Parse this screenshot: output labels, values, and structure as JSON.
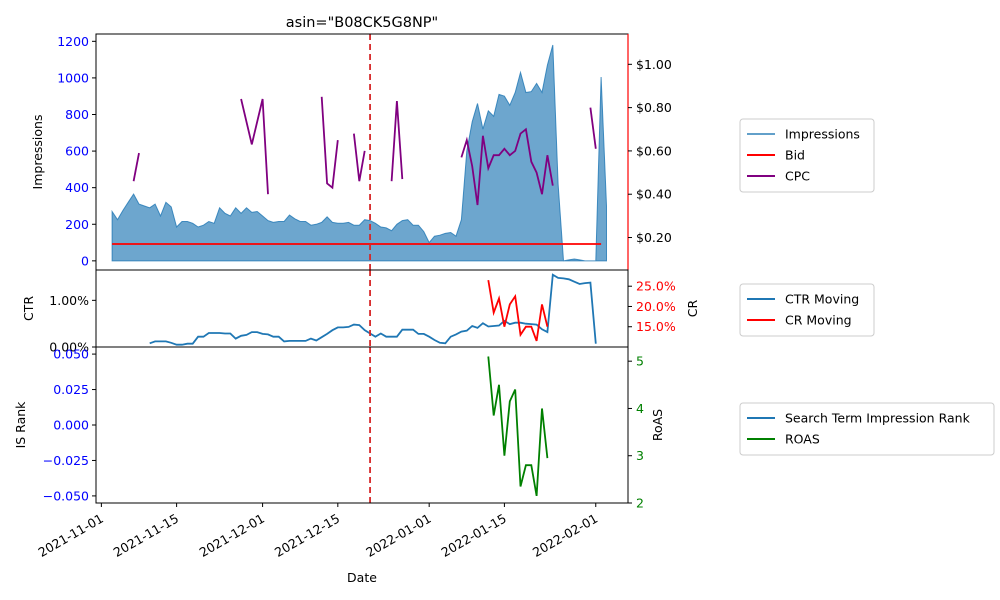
{
  "chart_data": {
    "type": "line",
    "title": "asin=\"B08CK5G8NP\"",
    "xlabel": "Date",
    "x_range": [
      "2021-10-31",
      "2022-02-07"
    ],
    "x_ticks": [
      "2021-11-01",
      "2021-11-15",
      "2021-12-01",
      "2021-12-15",
      "2022-01-01",
      "2022-01-15",
      "2022-02-01"
    ],
    "event_line": {
      "date": "2021-12-21",
      "color": "#d62728",
      "style": "dashed"
    },
    "panels": [
      {
        "id": "impressions",
        "left_axis": {
          "label": "Impressions",
          "range": [
            -50,
            1240
          ],
          "ticks": [
            0,
            200,
            400,
            600,
            800,
            1000,
            1200
          ],
          "tick_labels": [
            "0",
            "200",
            "400",
            "600",
            "800",
            "1000",
            "1200"
          ],
          "color": "#0000ff"
        },
        "right_axis": {
          "label": "",
          "range": [
            0.05,
            1.14
          ],
          "ticks": [
            0.2,
            0.4,
            0.6,
            0.8,
            1.0
          ],
          "tick_labels": [
            "$0.20",
            "$0.40",
            "$0.60",
            "$0.80",
            "$1.00"
          ],
          "color": "#000000"
        },
        "legend": {
          "position": "right",
          "entries": [
            "Impressions",
            "Bid",
            "CPC"
          ]
        },
        "series": [
          {
            "name": "Impressions",
            "axis": "left",
            "kind": "area",
            "color": "#1f77b4",
            "start": "2021-11-03",
            "values": [
              270,
              225,
              275,
              320,
              365,
              310,
              300,
              290,
              310,
              245,
              320,
              295,
              185,
              215,
              215,
              205,
              185,
              195,
              215,
              205,
              290,
              260,
              245,
              290,
              260,
              290,
              265,
              270,
              245,
              220,
              210,
              215,
              215,
              250,
              230,
              215,
              215,
              195,
              200,
              210,
              240,
              210,
              205,
              205,
              210,
              195,
              195,
              225,
              220,
              205,
              185,
              180,
              165,
              200,
              220,
              225,
              195,
              195,
              160,
              100,
              135,
              140,
              150,
              155,
              135,
              225,
              600,
              760,
              860,
              720,
              820,
              790,
              910,
              900,
              850,
              920,
              1030,
              920,
              925,
              970,
              920,
              1070,
              1180,
              420,
              0,
              5,
              10,
              5,
              0,
              0,
              0,
              1005,
              300
            ]
          },
          {
            "name": "Bid",
            "axis": "right",
            "kind": "line",
            "color": "#ff0000",
            "points": [
              [
                "2021-11-03",
                0.17
              ],
              [
                "2022-02-02",
                0.17
              ]
            ]
          },
          {
            "name": "CPC",
            "axis": "right",
            "kind": "line",
            "color": "#800080",
            "segments": [
              [
                [
                  "2021-11-07",
                  0.46
                ],
                [
                  "2021-11-08",
                  0.59
                ]
              ],
              [
                [
                  "2021-11-27",
                  0.84
                ],
                [
                  "2021-11-29",
                  0.63
                ],
                [
                  "2021-12-01",
                  0.84
                ],
                [
                  "2021-12-02",
                  0.4
                ]
              ],
              [
                [
                  "2021-12-12",
                  0.85
                ],
                [
                  "2021-12-13",
                  0.45
                ],
                [
                  "2021-12-14",
                  0.43
                ],
                [
                  "2021-12-15",
                  0.65
                ]
              ],
              [
                [
                  "2021-12-18",
                  0.68
                ],
                [
                  "2021-12-19",
                  0.46
                ],
                [
                  "2021-12-20",
                  0.6
                ]
              ],
              [
                [
                  "2021-12-25",
                  0.46
                ],
                [
                  "2021-12-26",
                  0.83
                ],
                [
                  "2021-12-27",
                  0.47
                ]
              ],
              [
                [
                  "2022-01-07",
                  0.57
                ],
                [
                  "2022-01-08",
                  0.65
                ],
                [
                  "2022-01-09",
                  0.53
                ],
                [
                  "2022-01-10",
                  0.35
                ],
                [
                  "2022-01-11",
                  0.67
                ],
                [
                  "2022-01-12",
                  0.52
                ],
                [
                  "2022-01-13",
                  0.58
                ],
                [
                  "2022-01-14",
                  0.58
                ],
                [
                  "2022-01-15",
                  0.61
                ],
                [
                  "2022-01-16",
                  0.58
                ],
                [
                  "2022-01-17",
                  0.6
                ],
                [
                  "2022-01-18",
                  0.68
                ],
                [
                  "2022-01-19",
                  0.7
                ],
                [
                  "2022-01-20",
                  0.55
                ],
                [
                  "2022-01-21",
                  0.5
                ],
                [
                  "2022-01-22",
                  0.4
                ],
                [
                  "2022-01-23",
                  0.58
                ],
                [
                  "2022-01-24",
                  0.44
                ]
              ],
              [
                [
                  "2022-01-31",
                  0.8
                ],
                [
                  "2022-02-01",
                  0.61
                ]
              ]
            ]
          }
        ]
      },
      {
        "id": "ctr",
        "left_axis": {
          "label": "CTR",
          "range": [
            0,
            1.65
          ],
          "ticks": [
            0,
            1.0
          ],
          "tick_labels": [
            "0.00%",
            "1.00%"
          ],
          "color": "#000000"
        },
        "right_axis": {
          "label": "CR",
          "range": [
            10,
            29
          ],
          "ticks": [
            15,
            20,
            25
          ],
          "tick_labels": [
            "15.0%",
            "20.0%",
            "25.0%"
          ],
          "color": "#ff0000"
        },
        "legend": {
          "position": "right",
          "entries": [
            "CTR Moving",
            "CR Moving"
          ]
        },
        "series": [
          {
            "name": "CTR Moving",
            "axis": "left",
            "kind": "line",
            "color": "#1f77b4",
            "start": "2021-11-10",
            "values": [
              0.08,
              0.12,
              0.12,
              0.12,
              0.09,
              0.05,
              0.05,
              0.07,
              0.07,
              0.22,
              0.22,
              0.3,
              0.3,
              0.3,
              0.29,
              0.29,
              0.18,
              0.24,
              0.26,
              0.32,
              0.32,
              0.28,
              0.27,
              0.22,
              0.22,
              0.12,
              0.13,
              0.13,
              0.13,
              0.13,
              0.18,
              0.14,
              0.21,
              0.28,
              0.36,
              0.42,
              0.42,
              0.43,
              0.48,
              0.47,
              0.36,
              0.29,
              0.22,
              0.29,
              0.22,
              0.22,
              0.22,
              0.37,
              0.37,
              0.37,
              0.28,
              0.28,
              0.22,
              0.15,
              0.09,
              0.08,
              0.22,
              0.27,
              0.33,
              0.35,
              0.45,
              0.41,
              0.51,
              0.44,
              0.45,
              0.46,
              0.56,
              0.49,
              0.52,
              0.52,
              0.5,
              0.49,
              0.48,
              0.38,
              0.32,
              1.55,
              1.48,
              1.47,
              1.45,
              1.4,
              1.35,
              1.37,
              1.38,
              0.07
            ]
          },
          {
            "name": "CR Moving",
            "axis": "right",
            "kind": "line",
            "color": "#ff0000",
            "start": "2022-01-12",
            "values": [
              26.5,
              18.5,
              22.0,
              15.0,
              20.5,
              22.5,
              13.0,
              15.0,
              15.0,
              11.5,
              20.5,
              15.0
            ]
          }
        ]
      },
      {
        "id": "is_rank",
        "left_axis": {
          "label": "IS Rank",
          "range": [
            -0.055,
            0.055
          ],
          "ticks": [
            -0.05,
            -0.025,
            0,
            0.025,
            0.05
          ],
          "tick_labels": [
            "−0.050",
            "−0.025",
            "0.000",
            "0.025",
            "0.050"
          ],
          "color": "#0000ff"
        },
        "right_axis": {
          "label": "RoAS",
          "range": [
            2,
            5.3
          ],
          "ticks": [
            2,
            3,
            4,
            5
          ],
          "tick_labels": [
            "2",
            "3",
            "4",
            "5"
          ],
          "color": "#008000"
        },
        "legend": {
          "position": "right",
          "entries": [
            "Search Term Impression Rank",
            "ROAS"
          ]
        },
        "series": [
          {
            "name": "Search Term Impression Rank",
            "axis": "left",
            "kind": "line",
            "color": "#1f77b4",
            "values": []
          },
          {
            "name": "ROAS",
            "axis": "right",
            "kind": "line",
            "color": "#008000",
            "start": "2022-01-12",
            "values": [
              5.1,
              3.85,
              4.5,
              3.0,
              4.15,
              4.4,
              2.35,
              2.8,
              2.8,
              2.15,
              4.0,
              2.95
            ]
          }
        ]
      }
    ]
  }
}
